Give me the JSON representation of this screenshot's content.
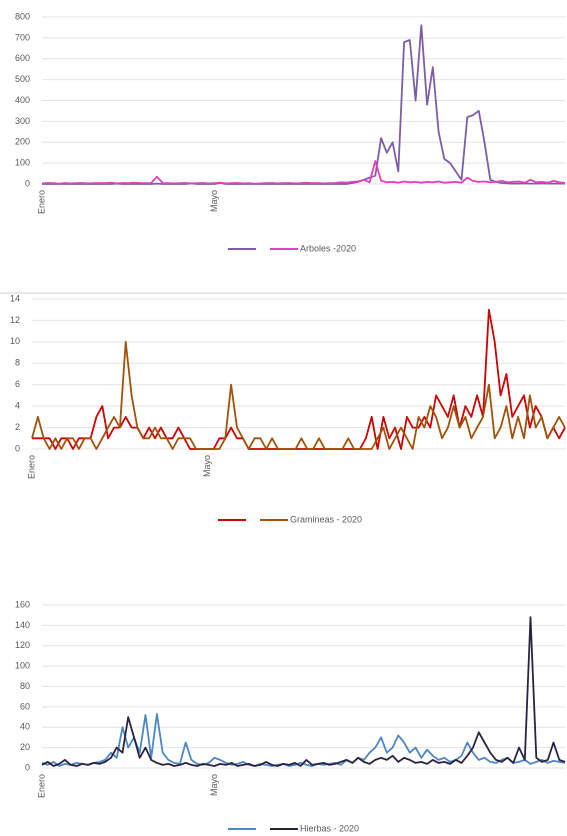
{
  "chart_data": [
    {
      "type": "line",
      "ylim": [
        0,
        800
      ],
      "yticks": [
        0,
        100,
        200,
        300,
        400,
        500,
        600,
        700,
        800
      ],
      "grid": true,
      "categories": [
        "Enero",
        null,
        null,
        null,
        null,
        null,
        null,
        null,
        null,
        null,
        null,
        null,
        null,
        null,
        null,
        null,
        null,
        null,
        null,
        null,
        null,
        null,
        null,
        null,
        null,
        null,
        null,
        null,
        null,
        null,
        "Mayo",
        null,
        null,
        null,
        null,
        null,
        null,
        null,
        null,
        null,
        null,
        null,
        null,
        null,
        null,
        null,
        null,
        null,
        null,
        null,
        null,
        null,
        null,
        null,
        null,
        null,
        null,
        null,
        null,
        null,
        null,
        null,
        null,
        null,
        null,
        null,
        null,
        null,
        null,
        null,
        null,
        null,
        null,
        null,
        null,
        null,
        null,
        null,
        null,
        null,
        null,
        null,
        null,
        null,
        null,
        null,
        null,
        null,
        null,
        null,
        null,
        null
      ],
      "series": [
        {
          "color": "#7b5ea7",
          "values": [
            0,
            0,
            0,
            0,
            0,
            0,
            0,
            0,
            0,
            0,
            0,
            0,
            0,
            2,
            0,
            0,
            0,
            0,
            0,
            0,
            2,
            0,
            0,
            0,
            0,
            0,
            3,
            0,
            0,
            0,
            0,
            5,
            0,
            0,
            0,
            0,
            0,
            0,
            0,
            0,
            0,
            0,
            0,
            0,
            0,
            0,
            0,
            0,
            0,
            0,
            0,
            0,
            0,
            0,
            5,
            10,
            20,
            30,
            40,
            220,
            150,
            200,
            60,
            680,
            690,
            400,
            760,
            380,
            560,
            250,
            120,
            100,
            60,
            20,
            320,
            330,
            350,
            200,
            20,
            10,
            5,
            3,
            2,
            2,
            3,
            2,
            2,
            3,
            2,
            2,
            2,
            2
          ]
        },
        {
          "name": "Arboles -2020",
          "color": "#e040c0",
          "values": [
            3,
            5,
            4,
            2,
            5,
            3,
            4,
            5,
            3,
            4,
            5,
            4,
            6,
            3,
            5,
            4,
            6,
            5,
            4,
            5,
            35,
            5,
            4,
            3,
            4,
            5,
            3,
            4,
            5,
            3,
            4,
            6,
            3,
            4,
            5,
            3,
            4,
            2,
            3,
            4,
            5,
            3,
            4,
            5,
            3,
            4,
            6,
            4,
            5,
            3,
            4,
            5,
            8,
            6,
            10,
            12,
            20,
            8,
            110,
            15,
            8,
            10,
            6,
            12,
            8,
            10,
            6,
            10,
            8,
            12,
            6,
            8,
            10,
            6,
            30,
            15,
            10,
            12,
            8,
            10,
            15,
            8,
            10,
            12,
            6,
            20,
            8,
            10,
            6,
            15,
            8,
            5
          ]
        }
      ]
    },
    {
      "type": "line",
      "ylim": [
        0,
        14
      ],
      "yticks": [
        0,
        2,
        4,
        6,
        8,
        10,
        12,
        14
      ],
      "grid": true,
      "categories": [
        "Enero",
        null,
        null,
        null,
        null,
        null,
        null,
        null,
        null,
        null,
        null,
        null,
        null,
        null,
        null,
        null,
        null,
        null,
        null,
        null,
        null,
        null,
        null,
        null,
        null,
        null,
        null,
        null,
        null,
        null,
        "Mayo",
        null,
        null,
        null,
        null,
        null,
        null,
        null,
        null,
        null,
        null,
        null,
        null,
        null,
        null,
        null,
        null,
        null,
        null,
        null,
        null,
        null,
        null,
        null,
        null,
        null,
        null,
        null,
        null,
        null,
        null,
        null,
        null,
        null,
        null,
        null,
        null,
        null,
        null,
        null,
        null,
        null,
        null,
        null,
        null,
        null,
        null,
        null,
        null,
        null,
        null,
        null,
        null,
        null,
        null,
        null,
        null,
        null,
        null,
        null,
        null,
        null
      ],
      "series": [
        {
          "color": "#cc0000",
          "values": [
            1,
            1,
            1,
            1,
            0,
            1,
            1,
            0,
            1,
            1,
            1,
            3,
            4,
            1,
            2,
            2,
            3,
            2,
            2,
            1,
            2,
            1,
            2,
            1,
            1,
            2,
            1,
            0,
            0,
            0,
            0,
            0,
            1,
            1,
            2,
            1,
            1,
            0,
            0,
            0,
            0,
            0,
            0,
            0,
            0,
            0,
            0,
            0,
            0,
            0,
            0,
            0,
            0,
            0,
            0,
            0,
            0,
            1,
            3,
            0,
            3,
            1,
            2,
            0,
            3,
            2,
            2,
            3,
            2,
            5,
            4,
            3,
            5,
            2,
            4,
            3,
            5,
            3,
            13,
            10,
            5,
            7,
            3,
            4,
            5,
            2,
            4,
            3,
            1,
            2,
            1,
            2
          ]
        },
        {
          "name": "Gramineas - 2020",
          "color": "#a0520a",
          "values": [
            1,
            3,
            1,
            0,
            1,
            0,
            1,
            1,
            0,
            1,
            1,
            0,
            1,
            2,
            3,
            2,
            10,
            5,
            2,
            1,
            1,
            2,
            1,
            1,
            0,
            1,
            1,
            1,
            0,
            0,
            0,
            0,
            0,
            1,
            6,
            2,
            1,
            0,
            1,
            1,
            0,
            1,
            0,
            0,
            0,
            0,
            1,
            0,
            0,
            1,
            0,
            0,
            0,
            0,
            1,
            0,
            0,
            0,
            0,
            1,
            2,
            0,
            1,
            2,
            1,
            0,
            3,
            2,
            4,
            3,
            1,
            2,
            4,
            2,
            3,
            1,
            2,
            3,
            6,
            1,
            2,
            4,
            1,
            3,
            1,
            5,
            2,
            3,
            1,
            2,
            3,
            2
          ]
        }
      ]
    },
    {
      "type": "line",
      "ylim": [
        0,
        160
      ],
      "yticks": [
        0,
        20,
        40,
        60,
        80,
        100,
        120,
        140,
        160
      ],
      "grid": true,
      "categories": [
        "Enero",
        null,
        null,
        null,
        null,
        null,
        null,
        null,
        null,
        null,
        null,
        null,
        null,
        null,
        null,
        null,
        null,
        null,
        null,
        null,
        null,
        null,
        null,
        null,
        null,
        null,
        null,
        null,
        null,
        null,
        "Mayo",
        null,
        null,
        null,
        null,
        null,
        null,
        null,
        null,
        null,
        null,
        null,
        null,
        null,
        null,
        null,
        null,
        null,
        null,
        null,
        null,
        null,
        null,
        null,
        null,
        null,
        null,
        null,
        null,
        null,
        null,
        null,
        null,
        null,
        null,
        null,
        null,
        null,
        null,
        null,
        null,
        null,
        null,
        null,
        null,
        null,
        null,
        null,
        null,
        null,
        null,
        null,
        null,
        null,
        null,
        null,
        null,
        null,
        null,
        null,
        null,
        null
      ],
      "series": [
        {
          "color": "#4f86c6",
          "values": [
            5,
            3,
            6,
            2,
            4,
            3,
            5,
            4,
            3,
            5,
            6,
            8,
            15,
            10,
            40,
            20,
            30,
            15,
            52,
            10,
            53,
            15,
            8,
            5,
            4,
            25,
            8,
            4,
            3,
            5,
            10,
            8,
            5,
            3,
            4,
            6,
            3,
            2,
            4,
            3,
            2,
            3,
            4,
            2,
            3,
            5,
            3,
            2,
            4,
            3,
            4,
            5,
            3,
            8,
            5,
            10,
            8,
            15,
            20,
            30,
            15,
            20,
            32,
            25,
            15,
            20,
            10,
            18,
            12,
            8,
            10,
            6,
            8,
            12,
            25,
            15,
            8,
            10,
            6,
            5,
            8,
            10,
            5,
            6,
            8,
            4,
            6,
            8,
            5,
            7,
            6,
            5
          ]
        },
        {
          "name": "Hierbas - 2020",
          "color": "#2b2440",
          "values": [
            3,
            6,
            2,
            4,
            8,
            3,
            2,
            4,
            3,
            5,
            4,
            6,
            10,
            20,
            15,
            50,
            30,
            10,
            20,
            8,
            5,
            3,
            4,
            2,
            3,
            5,
            3,
            2,
            4,
            3,
            2,
            4,
            3,
            5,
            2,
            3,
            4,
            2,
            3,
            6,
            3,
            2,
            4,
            3,
            5,
            2,
            8,
            3,
            4,
            5,
            3,
            4,
            6,
            8,
            5,
            10,
            6,
            4,
            8,
            10,
            8,
            12,
            6,
            10,
            8,
            5,
            6,
            4,
            8,
            5,
            6,
            4,
            8,
            5,
            12,
            20,
            35,
            25,
            15,
            8,
            6,
            10,
            5,
            20,
            8,
            148,
            10,
            6,
            8,
            25,
            8,
            6
          ]
        }
      ]
    }
  ]
}
